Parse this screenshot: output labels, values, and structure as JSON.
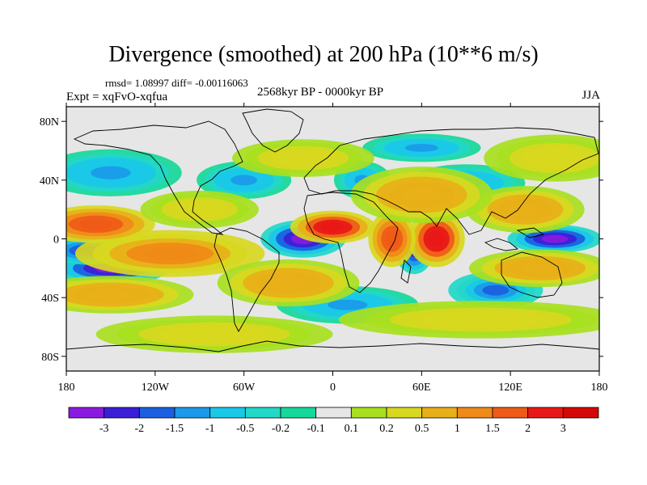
{
  "chart_data": {
    "type": "heatmap",
    "title": "Divergence (smoothed) at 200 hPa (10**6 m/s)",
    "stats": "rmsd= 1.08997 diff= -0.00116063",
    "experiment": "Expt = xqFvO-xqfua",
    "period": "2568kyr BP - 0000kyr BP",
    "season": "JJA",
    "x_axis": {
      "range": [
        -180,
        180
      ],
      "ticks": [
        -180,
        -120,
        -60,
        0,
        60,
        120,
        180
      ],
      "tick_labels": [
        "180",
        "120W",
        "60W",
        "0",
        "60E",
        "120E",
        "180"
      ]
    },
    "y_axis": {
      "range": [
        -90,
        90
      ],
      "ticks": [
        80,
        40,
        0,
        -40,
        -80
      ],
      "tick_labels": [
        "80N",
        "40N",
        "0",
        "40S",
        "80S"
      ]
    },
    "colorbar": {
      "levels": [
        "-3",
        "-2",
        "-1.5",
        "-1",
        "-0.5",
        "-0.2",
        "-0.1",
        "0.1",
        "0.2",
        "0.5",
        "1",
        "1.5",
        "2",
        "3"
      ],
      "colors": [
        "#8a1ae0",
        "#3a1fd6",
        "#1a5fe0",
        "#1a9ae8",
        "#1ac8e8",
        "#22d8c8",
        "#16d89a",
        "#e6e6e6",
        "#a8e020",
        "#d8d820",
        "#e8b018",
        "#f08a18",
        "#f05a18",
        "#e81818",
        "#d40808"
      ]
    },
    "anomalies": [
      {
        "lon": -20,
        "lat": 0,
        "sx": 18,
        "sy": 8,
        "level": -3
      },
      {
        "lon": 150,
        "lat": 0,
        "sx": 20,
        "sy": 6,
        "level": -3
      },
      {
        "lon": -150,
        "lat": -20,
        "sx": 25,
        "sy": 7,
        "level": -3
      },
      {
        "lon": -165,
        "lat": -8,
        "sx": 18,
        "sy": 6,
        "level": -2
      },
      {
        "lon": 55,
        "lat": -8,
        "sx": 8,
        "sy": 10,
        "level": -2
      },
      {
        "lon": 110,
        "lat": -35,
        "sx": 20,
        "sy": 8,
        "level": -1.5
      },
      {
        "lon": -150,
        "lat": 45,
        "sx": 30,
        "sy": 10,
        "level": -1
      },
      {
        "lon": 90,
        "lat": 38,
        "sx": 25,
        "sy": 8,
        "level": -1
      },
      {
        "lon": 20,
        "lat": 40,
        "sx": 12,
        "sy": 8,
        "level": -1
      },
      {
        "lon": -60,
        "lat": 40,
        "sx": 20,
        "sy": 8,
        "level": -1
      },
      {
        "lon": 10,
        "lat": -45,
        "sx": 30,
        "sy": 8,
        "level": -1
      },
      {
        "lon": 60,
        "lat": 62,
        "sx": 25,
        "sy": 6,
        "level": -1
      },
      {
        "lon": 0,
        "lat": 8,
        "sx": 18,
        "sy": 7,
        "level": 3
      },
      {
        "lon": 70,
        "lat": 0,
        "sx": 12,
        "sy": 12,
        "level": 3
      },
      {
        "lon": 40,
        "lat": 0,
        "sx": 10,
        "sy": 12,
        "level": 2
      },
      {
        "lon": -110,
        "lat": -10,
        "sx": 40,
        "sy": 10,
        "level": 1.5
      },
      {
        "lon": -160,
        "lat": 10,
        "sx": 25,
        "sy": 8,
        "level": 2
      },
      {
        "lon": -150,
        "lat": -38,
        "sx": 35,
        "sy": 8,
        "level": 1
      },
      {
        "lon": 130,
        "lat": 20,
        "sx": 25,
        "sy": 10,
        "level": 1
      },
      {
        "lon": 140,
        "lat": -20,
        "sx": 30,
        "sy": 8,
        "level": 1
      },
      {
        "lon": 60,
        "lat": 30,
        "sx": 30,
        "sy": 12,
        "level": 1
      },
      {
        "lon": -30,
        "lat": -30,
        "sx": 30,
        "sy": 10,
        "level": 1
      },
      {
        "lon": 100,
        "lat": -55,
        "sx": 60,
        "sy": 8,
        "level": 0.5
      },
      {
        "lon": -80,
        "lat": -65,
        "sx": 50,
        "sy": 8,
        "level": 0.5
      },
      {
        "lon": -20,
        "lat": 55,
        "sx": 30,
        "sy": 8,
        "level": 0.5
      },
      {
        "lon": 150,
        "lat": 55,
        "sx": 30,
        "sy": 10,
        "level": 0.5
      },
      {
        "lon": -90,
        "lat": 20,
        "sx": 25,
        "sy": 8,
        "level": 0.5
      }
    ]
  }
}
